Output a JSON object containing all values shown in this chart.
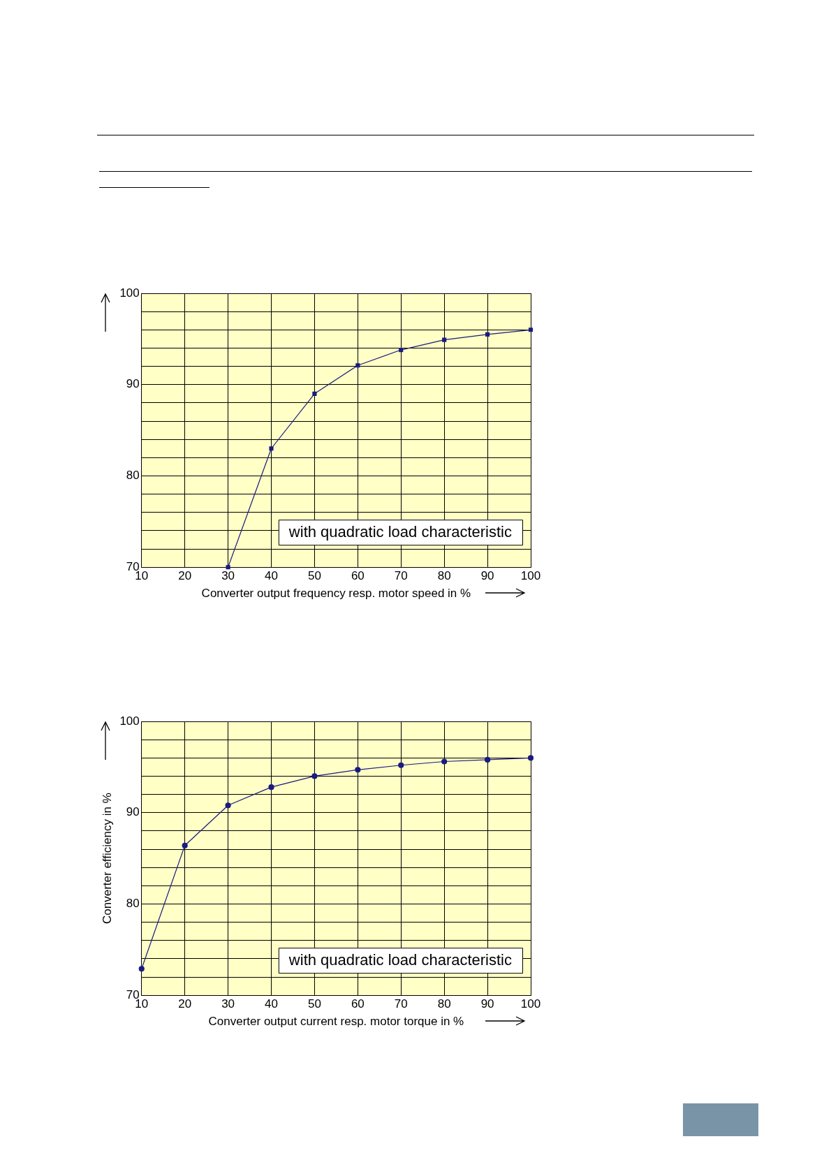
{
  "chart_data": [
    {
      "type": "line",
      "xlabel": "Converter output frequency resp. motor speed in %",
      "x": [
        30,
        40,
        50,
        60,
        70,
        80,
        90,
        100
      ],
      "series": [
        {
          "color": "#1a1a80",
          "values": [
            70,
            83.0,
            89.0,
            92.1,
            93.8,
            94.9,
            95.5,
            96.0
          ]
        }
      ],
      "xlim": [
        10,
        100
      ],
      "xticks": [
        10,
        20,
        30,
        40,
        50,
        60,
        70,
        80,
        90,
        100
      ],
      "ylim": [
        70,
        100
      ],
      "yticks": [
        70,
        {
          "value": 72,
          "label": null
        },
        {
          "value": 74,
          "label": null
        },
        {
          "value": 76,
          "label": null
        },
        {
          "value": 78,
          "label": null
        },
        80,
        {
          "value": 82,
          "label": null
        },
        {
          "value": 84,
          "label": null
        },
        {
          "value": 86,
          "label": null
        },
        {
          "value": 88,
          "label": null
        },
        90,
        {
          "value": 92,
          "label": null
        },
        {
          "value": 94,
          "label": null
        },
        {
          "value": 96,
          "label": null
        },
        {
          "value": 98,
          "label": null
        },
        100
      ],
      "grid": true,
      "legend": false,
      "marker": "square",
      "line_style": "solid",
      "annotations": [
        "with quadratic load characteristic"
      ]
    },
    {
      "type": "line",
      "xlabel": "Converter output current resp. motor torque in %",
      "ylabel": "Converter efficiency in %",
      "x": [
        10,
        20,
        30,
        40,
        50,
        60,
        70,
        80,
        90,
        100
      ],
      "series": [
        {
          "color": "#1a1a80",
          "values": [
            72.9,
            86.4,
            90.8,
            92.8,
            94.0,
            94.7,
            95.2,
            95.6,
            95.8,
            96.0
          ]
        }
      ],
      "xlim": [
        10,
        100
      ],
      "xticks": [
        10,
        20,
        30,
        40,
        50,
        60,
        70,
        80,
        90,
        100
      ],
      "ylim": [
        70,
        100
      ],
      "yticks": [
        70,
        {
          "value": 72,
          "label": null
        },
        {
          "value": 74,
          "label": null
        },
        {
          "value": 76,
          "label": null
        },
        {
          "value": 78,
          "label": null
        },
        80,
        {
          "value": 82,
          "label": null
        },
        {
          "value": 84,
          "label": null
        },
        {
          "value": 86,
          "label": null
        },
        {
          "value": 88,
          "label": null
        },
        90,
        {
          "value": 92,
          "label": null
        },
        {
          "value": 94,
          "label": null
        },
        {
          "value": 96,
          "label": null
        },
        {
          "value": 98,
          "label": null
        },
        100
      ],
      "grid": true,
      "legend": false,
      "marker": "circle",
      "line_style": "solid",
      "annotations": [
        "with quadratic load characteristic"
      ]
    }
  ]
}
